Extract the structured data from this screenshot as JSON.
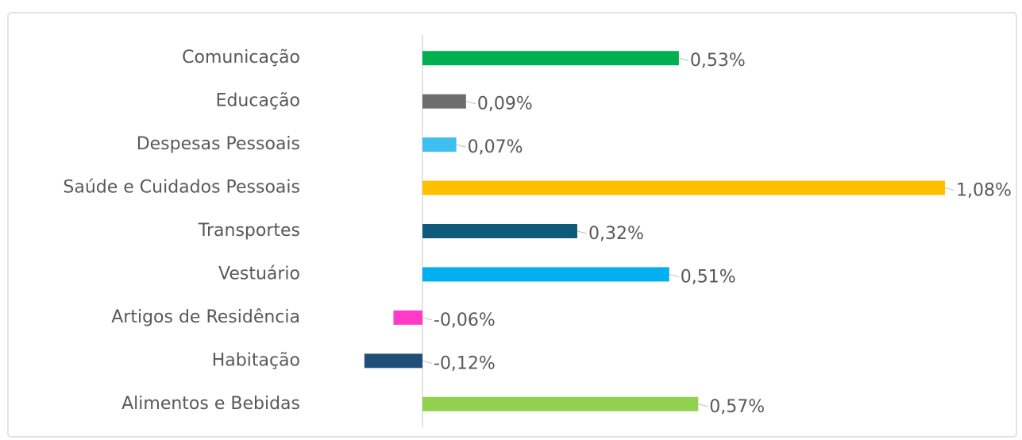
{
  "chart_data": {
    "type": "bar",
    "orientation": "horizontal",
    "categories": [
      "Comunicação",
      "Educação",
      "Despesas Pessoais",
      "Saúde e Cuidados Pessoais",
      "Transportes",
      "Vestuário",
      "Artigos de Residência",
      "Habitação",
      "Alimentos e Bebidas"
    ],
    "values": [
      0.53,
      0.09,
      0.07,
      1.08,
      0.32,
      0.51,
      -0.06,
      -0.12,
      0.57
    ],
    "value_labels": [
      "0,53%",
      "0,09%",
      "0,07%",
      "1,08%",
      "0,32%",
      "0,51%",
      "-0,06%",
      "-0,12%",
      "0,57%"
    ],
    "colors": [
      "#00b050",
      "#6d6d6d",
      "#3fbfef",
      "#ffc000",
      "#0f5a7a",
      "#00b0f0",
      "#ff3bc8",
      "#1f4e79",
      "#92d050"
    ]
  }
}
